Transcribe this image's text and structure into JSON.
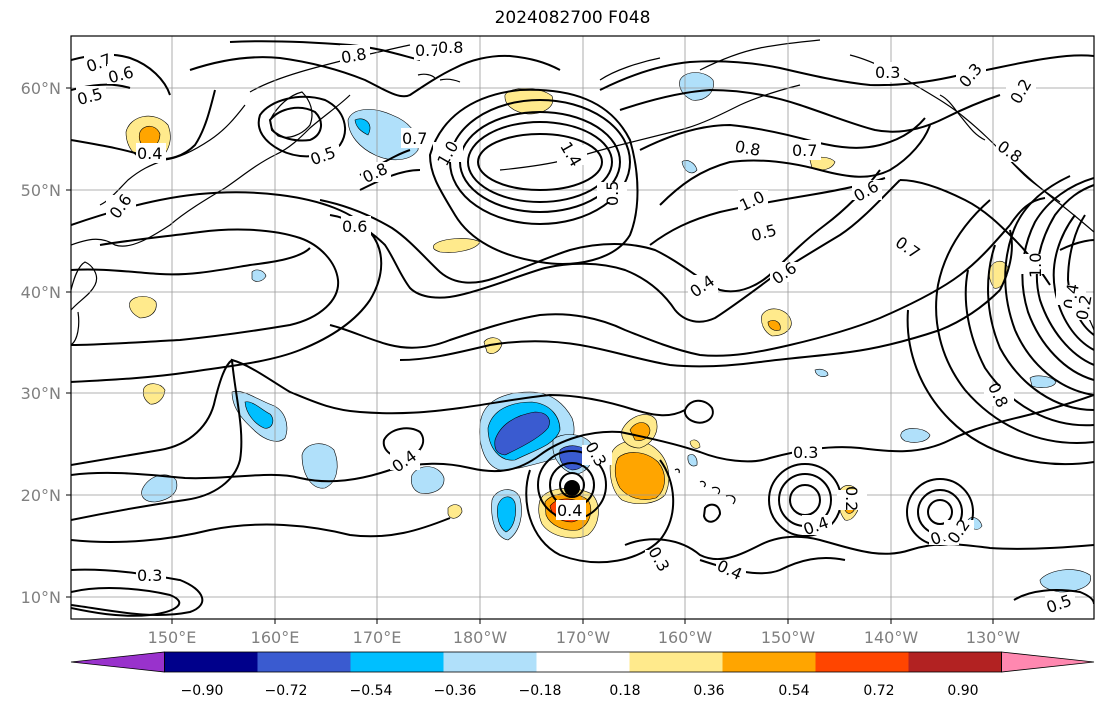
{
  "title": "2024082700 F048",
  "lat_labels": [
    "60°N",
    "50°N",
    "40°N",
    "30°N",
    "20°N",
    "10°N"
  ],
  "lon_labels": [
    "150°E",
    "160°E",
    "170°E",
    "180°W",
    "170°W",
    "160°W",
    "150°W",
    "140°W",
    "130°W"
  ],
  "colorbar": {
    "ticks": [
      "−0.90",
      "−0.72",
      "−0.54",
      "−0.36",
      "−0.18",
      "0.18",
      "0.36",
      "0.54",
      "0.72",
      "0.90"
    ],
    "colors": [
      "#9932cc",
      "#00008b",
      "#3a5bd0",
      "#00bfff",
      "#b0e0fa",
      "#ffffff",
      "#ffea8c",
      "#ffa500",
      "#ff4500",
      "#b22222",
      "#ff88b0"
    ]
  },
  "contour_labels": [
    "0.7",
    "0.6",
    "0.5",
    "0.4",
    "0.6",
    "0.8",
    "0.7",
    "0.8",
    "0.5",
    "0.7",
    "1.0",
    "0.8",
    "0.6",
    "1.4",
    "0.5",
    "0.8",
    "0.7",
    "0.3",
    "0.3",
    "0.2",
    "0.8",
    "1.0",
    "0.6",
    "0.5",
    "0.7",
    "0.4",
    "0.6",
    "1.0",
    "0.4",
    "0.8",
    "0.4",
    "0.3",
    "0.4",
    "0.3",
    "0.4",
    "0.2",
    "0.3",
    "0.4",
    "0.4",
    "0.3",
    "0.5",
    "0.2",
    "0.2"
  ]
}
